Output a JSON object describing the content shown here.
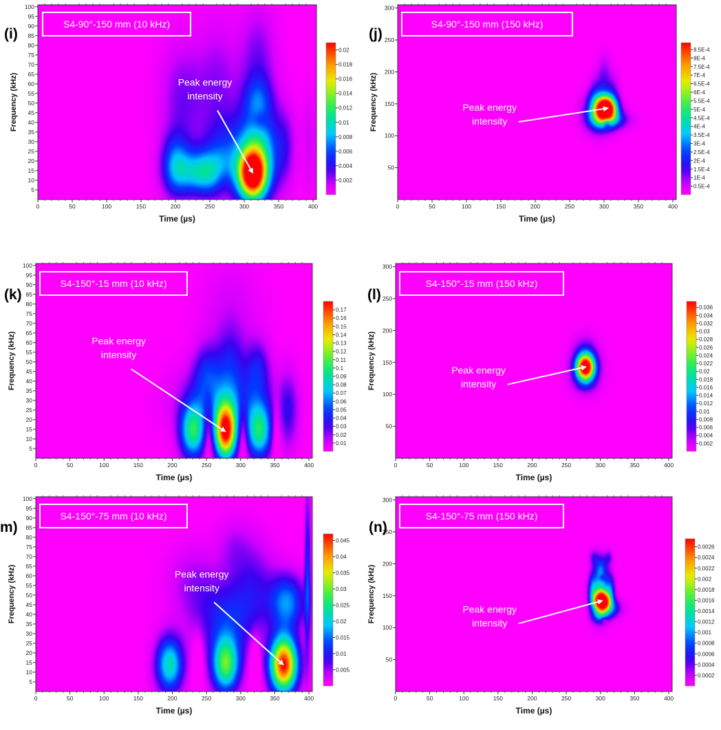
{
  "figure": {
    "panels": [
      {
        "letter": "(i)",
        "box_label": "S4-90°-150 mm (10 kHz)",
        "annotation": [
          "Peak energy",
          "intensity"
        ]
      },
      {
        "letter": "(j)",
        "box_label": "S4-90°-150 mm (150 kHz)",
        "annotation": [
          "Peak energy",
          "intensity"
        ]
      },
      {
        "letter": "(k)",
        "box_label": "S4-150°-15 mm (10 kHz)",
        "annotation": [
          "Peak energy",
          "intensity"
        ]
      },
      {
        "letter": "(l)",
        "box_label": "S4-150°-15 mm (150 kHz)",
        "annotation": [
          "Peak energy",
          "intensity"
        ]
      },
      {
        "letter": "m)",
        "box_label": "S4-150°-75 mm (10 kHz)",
        "annotation": [
          "Peak energy",
          "intensity"
        ]
      },
      {
        "letter": "(n)",
        "box_label": "S4-150°-75 mm (150 kHz)",
        "annotation": [
          "Peak energy",
          "intensity"
        ]
      }
    ]
  },
  "chart_data": [
    {
      "type": "heatmap",
      "title": "S4-90°-150 mm (10 kHz)",
      "xlabel": "Time (µs)",
      "ylabel": "Frequency (kHz)",
      "xlim": [
        0,
        405
      ],
      "ylim": [
        0,
        101
      ],
      "xticks": [
        "0",
        "50",
        "100",
        "150",
        "200",
        "250",
        "300",
        "350",
        "400"
      ],
      "yticks": [
        "5",
        "10",
        "15",
        "20",
        "25",
        "30",
        "35",
        "40",
        "45",
        "50",
        "55",
        "60",
        "65",
        "70",
        "75",
        "80",
        "85",
        "90",
        "95",
        "100"
      ],
      "colorbar": {
        "min": 0,
        "max": 0.021,
        "ticks": [
          "0.002",
          "0.004",
          "0.006",
          "0.008",
          "0.01",
          "0.012",
          "0.014",
          "0.016",
          "0.018",
          "0.02"
        ]
      },
      "peak": {
        "time": 312,
        "frequency": 14
      },
      "annotation_text_pos": [
        0.6,
        0.45
      ],
      "blobs": [
        {
          "t": 312,
          "f": 13,
          "st": 14,
          "sf": 9,
          "a": 1.0
        },
        {
          "t": 320,
          "f": 25,
          "st": 22,
          "sf": 16,
          "a": 0.42
        },
        {
          "t": 238,
          "f": 14,
          "st": 25,
          "sf": 8,
          "a": 0.42
        },
        {
          "t": 200,
          "f": 18,
          "st": 14,
          "sf": 11,
          "a": 0.3
        },
        {
          "t": 270,
          "f": 22,
          "st": 22,
          "sf": 14,
          "a": 0.2
        },
        {
          "t": 210,
          "f": 52,
          "st": 22,
          "sf": 20,
          "a": 0.13
        },
        {
          "t": 262,
          "f": 60,
          "st": 22,
          "sf": 22,
          "a": 0.11
        },
        {
          "t": 320,
          "f": 68,
          "st": 18,
          "sf": 22,
          "a": 0.14
        },
        {
          "t": 320,
          "f": 52,
          "st": 14,
          "sf": 8,
          "a": 0.14
        },
        {
          "t": 360,
          "f": 28,
          "st": 10,
          "sf": 14,
          "a": 0.1
        },
        {
          "t": 395,
          "f": 30,
          "st": 8,
          "sf": 18,
          "a": 0.06
        }
      ],
      "holes": [
        {
          "t": 322,
          "f": 41,
          "st": 9,
          "sf": 4,
          "a": 0.1
        },
        {
          "t": 270,
          "f": 10,
          "st": 10,
          "sf": 6,
          "a": 0.08
        }
      ]
    },
    {
      "type": "heatmap",
      "title": "S4-90°-150 mm (150 kHz)",
      "xlabel": "Time (µs)",
      "ylabel": "Frequency (kHz)",
      "xlim": [
        0,
        405
      ],
      "ylim": [
        0,
        305
      ],
      "xticks": [
        "0",
        "50",
        "100",
        "150",
        "200",
        "250",
        "300",
        "350",
        "400"
      ],
      "yticks": [
        "50",
        "100",
        "150",
        "200",
        "250",
        "300"
      ],
      "colorbar": {
        "min": 0,
        "max": 0.00089,
        "ticks": [
          "0.5E-4",
          "1E-4",
          "1.5E-4",
          "2E-4",
          "2.5E-4",
          "3E-4",
          "3.5E-4",
          "4E-4",
          "4.5E-4",
          "5E-4",
          "5.5E-4",
          "6E-4",
          "6.5E-4",
          "7E-4",
          "7.5E-4",
          "8E-4",
          "8.5E-4"
        ]
      },
      "peak": {
        "time": 305,
        "frequency": 143
      },
      "annotation_text_pos": [
        0.33,
        0.58
      ],
      "blobs": [
        {
          "t": 303,
          "f": 143,
          "st": 10,
          "sf": 12,
          "a": 1.0
        },
        {
          "t": 294,
          "f": 138,
          "st": 14,
          "sf": 20,
          "a": 0.45
        },
        {
          "t": 308,
          "f": 125,
          "st": 18,
          "sf": 10,
          "a": 0.3
        },
        {
          "t": 300,
          "f": 170,
          "st": 9,
          "sf": 25,
          "a": 0.13
        },
        {
          "t": 286,
          "f": 160,
          "st": 6,
          "sf": 22,
          "a": 0.09
        },
        {
          "t": 314,
          "f": 165,
          "st": 6,
          "sf": 22,
          "a": 0.08
        },
        {
          "t": 300,
          "f": 205,
          "st": 6,
          "sf": 18,
          "a": 0.06
        }
      ],
      "holes": [
        {
          "t": 304,
          "f": 120,
          "st": 4,
          "sf": 5,
          "a": 0.25
        }
      ]
    },
    {
      "type": "heatmap",
      "title": "S4-150°-15 mm (10 kHz)",
      "xlabel": "Time (µs)",
      "ylabel": "Frequency (kHz)",
      "xlim": [
        0,
        405
      ],
      "ylim": [
        0,
        101
      ],
      "xticks": [
        "0",
        "50",
        "100",
        "150",
        "200",
        "250",
        "300",
        "350",
        "400"
      ],
      "yticks": [
        "5",
        "10",
        "15",
        "20",
        "25",
        "30",
        "35",
        "40",
        "45",
        "50",
        "55",
        "60",
        "65",
        "70",
        "75",
        "80",
        "85",
        "90",
        "95",
        "100"
      ],
      "colorbar": {
        "min": 0,
        "max": 0.18,
        "ticks": [
          "0.01",
          "0.02",
          "0.03",
          "0.04",
          "0.05",
          "0.06",
          "0.07",
          "0.08",
          "0.09",
          "0.1",
          "0.11",
          "0.12",
          "0.13",
          "0.14",
          "0.15",
          "0.16",
          "0.17"
        ]
      },
      "peak": {
        "time": 277,
        "frequency": 14
      },
      "annotation_text_pos": [
        0.3,
        0.45
      ],
      "blobs": [
        {
          "t": 278,
          "f": 14,
          "st": 11,
          "sf": 10,
          "a": 1.0
        },
        {
          "t": 230,
          "f": 14,
          "st": 13,
          "sf": 10,
          "a": 0.52
        },
        {
          "t": 327,
          "f": 14,
          "st": 13,
          "sf": 10,
          "a": 0.5
        },
        {
          "t": 280,
          "f": 30,
          "st": 45,
          "sf": 12,
          "a": 0.25
        },
        {
          "t": 370,
          "f": 24,
          "st": 10,
          "sf": 14,
          "a": 0.15
        },
        {
          "t": 250,
          "f": 45,
          "st": 14,
          "sf": 10,
          "a": 0.17
        },
        {
          "t": 325,
          "f": 47,
          "st": 12,
          "sf": 10,
          "a": 0.17
        },
        {
          "t": 285,
          "f": 50,
          "st": 14,
          "sf": 12,
          "a": 0.14
        },
        {
          "t": 285,
          "f": 72,
          "st": 30,
          "sf": 20,
          "a": 0.07
        }
      ],
      "holes": [
        {
          "t": 253,
          "f": 14,
          "st": 5,
          "sf": 12,
          "a": 0.16
        },
        {
          "t": 303,
          "f": 14,
          "st": 5,
          "sf": 12,
          "a": 0.16
        },
        {
          "t": 352,
          "f": 14,
          "st": 5,
          "sf": 12,
          "a": 0.12
        }
      ]
    },
    {
      "type": "heatmap",
      "title": "S4-150°-15 mm (150 kHz)",
      "xlabel": "Time (µs)",
      "ylabel": "Frequency (kHz)",
      "xlim": [
        0,
        405
      ],
      "ylim": [
        0,
        305
      ],
      "xticks": [
        "0",
        "50",
        "100",
        "150",
        "200",
        "250",
        "300",
        "350",
        "400"
      ],
      "yticks": [
        "50",
        "100",
        "150",
        "200",
        "250",
        "300"
      ],
      "colorbar": {
        "min": 0,
        "max": 0.0375,
        "ticks": [
          "0.002",
          "0.004",
          "0.006",
          "0.008",
          "0.01",
          "0.012",
          "0.014",
          "0.016",
          "0.018",
          "0.02",
          "0.022",
          "0.024",
          "0.026",
          "0.028",
          "0.03",
          "0.032",
          "0.034",
          "0.036"
        ]
      },
      "peak": {
        "time": 278,
        "frequency": 143
      },
      "annotation_text_pos": [
        0.3,
        0.6
      ],
      "blobs": [
        {
          "t": 278,
          "f": 143,
          "st": 9,
          "sf": 14,
          "a": 1.0
        },
        {
          "t": 278,
          "f": 140,
          "st": 15,
          "sf": 22,
          "a": 0.22
        },
        {
          "t": 278,
          "f": 175,
          "st": 12,
          "sf": 15,
          "a": 0.08
        },
        {
          "t": 278,
          "f": 115,
          "st": 12,
          "sf": 10,
          "a": 0.06
        }
      ],
      "holes": []
    },
    {
      "type": "heatmap",
      "title": "S4-150°-75 mm (10 kHz)",
      "xlabel": "Time (µs)",
      "ylabel": "Frequency (kHz)",
      "xlim": [
        0,
        405
      ],
      "ylim": [
        0,
        101
      ],
      "xticks": [
        "0",
        "50",
        "100",
        "150",
        "200",
        "250",
        "300",
        "350",
        "400"
      ],
      "yticks": [
        "5",
        "10",
        "15",
        "20",
        "25",
        "30",
        "35",
        "40",
        "45",
        "50",
        "55",
        "60",
        "65",
        "70",
        "75",
        "80",
        "85",
        "90",
        "95",
        "100"
      ],
      "colorbar": {
        "min": 0,
        "max": 0.047,
        "ticks": [
          "0.005",
          "0.01",
          "0.015",
          "0.02",
          "0.025",
          "0.03",
          "0.035",
          "0.04",
          "0.045"
        ]
      },
      "peak": {
        "time": 362,
        "frequency": 14
      },
      "annotation_text_pos": [
        0.6,
        0.45
      ],
      "blobs": [
        {
          "t": 363,
          "f": 14,
          "st": 14,
          "sf": 10,
          "a": 1.0
        },
        {
          "t": 278,
          "f": 14,
          "st": 14,
          "sf": 10,
          "a": 0.6
        },
        {
          "t": 196,
          "f": 14,
          "st": 14,
          "sf": 10,
          "a": 0.48
        },
        {
          "t": 368,
          "f": 46,
          "st": 18,
          "sf": 10,
          "a": 0.35
        },
        {
          "t": 280,
          "f": 38,
          "st": 30,
          "sf": 14,
          "a": 0.22
        },
        {
          "t": 320,
          "f": 55,
          "st": 22,
          "sf": 16,
          "a": 0.14
        },
        {
          "t": 230,
          "f": 55,
          "st": 25,
          "sf": 14,
          "a": 0.1
        },
        {
          "t": 290,
          "f": 75,
          "st": 18,
          "sf": 10,
          "a": 0.08
        },
        {
          "t": 398,
          "f": 60,
          "st": 3,
          "sf": 30,
          "a": 0.25
        }
      ],
      "holes": [
        {
          "t": 237,
          "f": 14,
          "st": 5,
          "sf": 10,
          "a": 0.14
        },
        {
          "t": 321,
          "f": 14,
          "st": 5,
          "sf": 10,
          "a": 0.14
        }
      ]
    },
    {
      "type": "heatmap",
      "title": "S4-150°-75 mm (150 kHz)",
      "xlabel": "Time (µs)",
      "ylabel": "Frequency (kHz)",
      "xlim": [
        0,
        405
      ],
      "ylim": [
        0,
        305
      ],
      "xticks": [
        "0",
        "50",
        "100",
        "150",
        "200",
        "250",
        "300",
        "350",
        "400"
      ],
      "yticks": [
        "50",
        "100",
        "150",
        "200",
        "250",
        "300"
      ],
      "colorbar": {
        "min": 0,
        "max": 0.00275,
        "ticks": [
          "0.0002",
          "0.0004",
          "0.0006",
          "0.0008",
          "0.001",
          "0.0012",
          "0.0014",
          "0.0016",
          "0.0018",
          "0.002",
          "0.0022",
          "0.0024",
          "0.0026"
        ]
      },
      "peak": {
        "time": 302,
        "frequency": 142
      },
      "annotation_text_pos": [
        0.34,
        0.63
      ],
      "blobs": [
        {
          "t": 302,
          "f": 142,
          "st": 8,
          "sf": 10,
          "a": 1.0
        },
        {
          "t": 300,
          "f": 155,
          "st": 9,
          "sf": 25,
          "a": 0.45
        },
        {
          "t": 312,
          "f": 130,
          "st": 12,
          "sf": 10,
          "a": 0.3
        },
        {
          "t": 288,
          "f": 160,
          "st": 4,
          "sf": 16,
          "a": 0.22
        },
        {
          "t": 315,
          "f": 160,
          "st": 4,
          "sf": 16,
          "a": 0.22
        },
        {
          "t": 300,
          "f": 195,
          "st": 6,
          "sf": 14,
          "a": 0.2
        },
        {
          "t": 290,
          "f": 210,
          "st": 4,
          "sf": 8,
          "a": 0.14
        },
        {
          "t": 312,
          "f": 210,
          "st": 4,
          "sf": 8,
          "a": 0.14
        },
        {
          "t": 298,
          "f": 118,
          "st": 8,
          "sf": 8,
          "a": 0.2
        }
      ],
      "holes": [
        {
          "t": 302,
          "f": 178,
          "st": 3,
          "sf": 4,
          "a": 0.12
        },
        {
          "t": 305,
          "f": 112,
          "st": 3,
          "sf": 3,
          "a": 0.15
        }
      ]
    }
  ]
}
